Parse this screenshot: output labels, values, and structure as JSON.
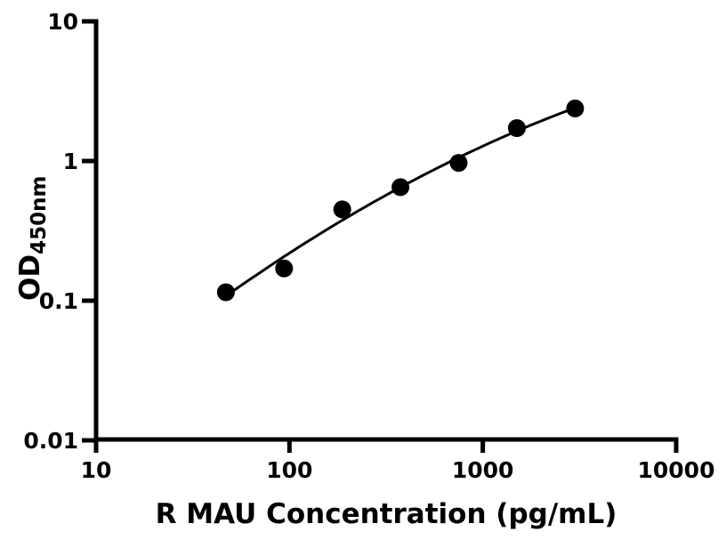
{
  "chart_data": {
    "type": "scatter",
    "title": "",
    "xlabel": "R MAU Concentration (pg/mL)",
    "ylabel_main": "OD",
    "ylabel_sub": "450nm",
    "x_scale": "log",
    "y_scale": "log",
    "xlim": [
      10,
      10000
    ],
    "ylim": [
      0.01,
      10
    ],
    "x_ticks": [
      "10",
      "100",
      "1000",
      "10000"
    ],
    "y_ticks": [
      "10",
      "1",
      "0.1",
      "0.01"
    ],
    "grid": "off",
    "legend": "none",
    "points": [
      {
        "x": 46.9,
        "y": 0.115
      },
      {
        "x": 93.8,
        "y": 0.17
      },
      {
        "x": 187.5,
        "y": 0.45
      },
      {
        "x": 375,
        "y": 0.65
      },
      {
        "x": 750,
        "y": 0.97
      },
      {
        "x": 1500,
        "y": 1.72
      },
      {
        "x": 3000,
        "y": 2.38
      }
    ],
    "fit_curve": "smooth fit through points (quadratic in log-log space)",
    "colors": {
      "marker": "#000000",
      "line": "#000000",
      "axis": "#000000",
      "background": "#ffffff"
    }
  }
}
